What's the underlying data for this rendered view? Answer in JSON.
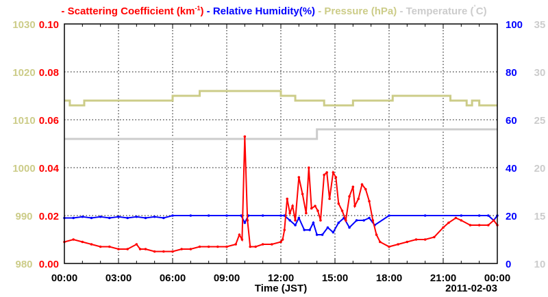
{
  "chart_data": {
    "type": "line",
    "legend": [
      {
        "label": "Scattering Coefficient (km-1)",
        "color": "#ff0000"
      },
      {
        "label": "Relative Humidity(%)",
        "color": "#0000ff"
      },
      {
        "label": "Pressure (hPa)",
        "color": "#cccc88"
      },
      {
        "label": "Temperature (C)",
        "color": "#cccccc"
      }
    ],
    "legend_title_parts": {
      "sc": "Scattering Coefficient (km",
      "sup": "-1",
      "sc_end": ")",
      "rh": "Relative Humidity(%)",
      "p": "Pressure (hPa)",
      "t": "Temperature (",
      "deg": "°",
      "t_end": "C)",
      "dash": "-"
    },
    "xlabel": "Time (JST)",
    "date_label": "2011-02-03",
    "xlim": [
      0,
      24
    ],
    "xticks": [
      0,
      3,
      6,
      9,
      12,
      15,
      18,
      21,
      24
    ],
    "xtick_labels": [
      "00:00",
      "03:00",
      "06:00",
      "09:00",
      "12:00",
      "15:00",
      "18:00",
      "21:00",
      "00:00"
    ],
    "axes": {
      "scattering": {
        "ylim": [
          0,
          0.1
        ],
        "ticks": [
          "0.00",
          "0.02",
          "0.04",
          "0.06",
          "0.08",
          "0.10"
        ],
        "color": "#ff0000"
      },
      "pressure": {
        "ylim": [
          980,
          1030
        ],
        "ticks": [
          "980",
          "990",
          "1000",
          "1010",
          "1020",
          "1030"
        ],
        "color": "#cccc88"
      },
      "humidity": {
        "ylim": [
          0,
          100
        ],
        "ticks": [
          "0",
          "20",
          "40",
          "60",
          "80",
          "100"
        ],
        "color": "#0000ff"
      },
      "temperature": {
        "ylim": [
          10,
          35
        ],
        "ticks": [
          "10",
          "15",
          "20",
          "25",
          "30",
          "35"
        ],
        "color": "#cccccc"
      }
    },
    "series": [
      {
        "name": "Pressure",
        "axis": "pressure",
        "step": true,
        "x": [
          0,
          0.3,
          1.1,
          6,
          7.5,
          12,
          12.8,
          14.4,
          16,
          18.2,
          21.4,
          22.3,
          22.6,
          23,
          24
        ],
        "y": [
          1014,
          1013,
          1014,
          1015,
          1016,
          1015,
          1014,
          1013,
          1014,
          1015,
          1014,
          1013,
          1014,
          1013,
          1013
        ]
      },
      {
        "name": "Temperature",
        "axis": "temperature",
        "step": true,
        "x": [
          0,
          14.0,
          24
        ],
        "y": [
          23,
          24,
          24
        ]
      },
      {
        "name": "Relative Humidity",
        "axis": "humidity",
        "x": [
          0,
          0.5,
          1,
          1.5,
          2,
          2.5,
          3,
          3.5,
          4,
          4.5,
          5,
          5.5,
          6,
          7,
          8,
          9,
          9.8,
          10,
          10.2,
          11,
          12,
          12.2,
          12.5,
          12.8,
          13,
          13.3,
          13.6,
          13.8,
          14,
          14.3,
          14.6,
          14.9,
          15.2,
          15.5,
          15.8,
          16.2,
          16.6,
          16.9,
          17.2,
          18,
          20,
          22,
          23,
          23.5,
          23.8,
          24
        ],
        "y": [
          19,
          19,
          19.5,
          19,
          19.5,
          19,
          19.5,
          19,
          19.5,
          19,
          19.5,
          19,
          20,
          20,
          20,
          20,
          20,
          17,
          20,
          20,
          20,
          20,
          18,
          16,
          19,
          14,
          14,
          17,
          12,
          12,
          15,
          13,
          17,
          19,
          15,
          18,
          18,
          19,
          16,
          20,
          20,
          20,
          20,
          20,
          18,
          20
        ]
      },
      {
        "name": "Scattering Coefficient",
        "axis": "scattering",
        "x": [
          0,
          0.5,
          1,
          1.5,
          2,
          2.5,
          3,
          3.5,
          4,
          4.2,
          4.5,
          5,
          5.5,
          6,
          6.5,
          7,
          7.5,
          8,
          8.5,
          9,
          9.5,
          9.7,
          9.85,
          10,
          10.15,
          10.3,
          10.6,
          11,
          11.5,
          12,
          12.1,
          12.2,
          12.35,
          12.5,
          12.65,
          12.8,
          13,
          13.2,
          13.4,
          13.55,
          13.7,
          13.9,
          14.05,
          14.2,
          14.4,
          14.55,
          14.7,
          14.9,
          15.05,
          15.2,
          15.4,
          15.6,
          15.8,
          16,
          16.1,
          16.3,
          16.5,
          16.7,
          16.9,
          17.1,
          17.3,
          17.5,
          18,
          18.5,
          19,
          19.5,
          20,
          20.5,
          21,
          21.3,
          21.7,
          22,
          22.5,
          23,
          23.5,
          23.8,
          24
        ],
        "y": [
          0.009,
          0.01,
          0.009,
          0.008,
          0.007,
          0.007,
          0.006,
          0.006,
          0.008,
          0.006,
          0.006,
          0.005,
          0.005,
          0.005,
          0.006,
          0.006,
          0.007,
          0.007,
          0.007,
          0.007,
          0.008,
          0.012,
          0.01,
          0.053,
          0.018,
          0.007,
          0.007,
          0.008,
          0.008,
          0.009,
          0.01,
          0.014,
          0.027,
          0.021,
          0.024,
          0.018,
          0.036,
          0.029,
          0.021,
          0.04,
          0.023,
          0.024,
          0.022,
          0.018,
          0.037,
          0.038,
          0.027,
          0.038,
          0.036,
          0.025,
          0.022,
          0.018,
          0.028,
          0.032,
          0.024,
          0.027,
          0.033,
          0.031,
          0.026,
          0.018,
          0.012,
          0.009,
          0.007,
          0.008,
          0.009,
          0.01,
          0.01,
          0.011,
          0.015,
          0.017,
          0.019,
          0.018,
          0.016,
          0.016,
          0.016,
          0.018,
          0.016
        ]
      }
    ]
  }
}
